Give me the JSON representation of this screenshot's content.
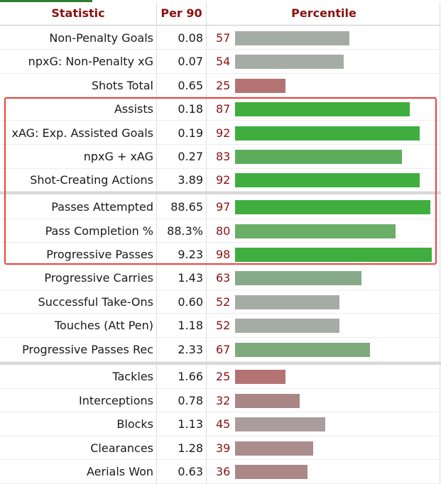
{
  "headers": {
    "statistic": "Statistic",
    "per90": "Per 90",
    "percentile": "Percentile"
  },
  "colors": {
    "header_text": "#8b1111",
    "percentile_text": "#8b1111",
    "bar_high": "#3fae3f",
    "bar_mid": "#6aae68",
    "bar_midlow": "#86aa87",
    "bar_neutral": "#a5aca5",
    "bar_low_mauve": "#aa8c8c",
    "bar_low_red": "#b47373",
    "highlight_box": "#e8433c"
  },
  "chart_data": {
    "type": "bar",
    "orientation": "horizontal",
    "title": "",
    "xlabel": "",
    "ylabel": "",
    "xlim": [
      0,
      100
    ],
    "categories": [
      "Non-Penalty Goals",
      "npxG: Non-Penalty xG",
      "Shots Total",
      "Assists",
      "xAG: Exp. Assisted Goals",
      "npxG + xAG",
      "Shot-Creating Actions",
      "Passes Attempted",
      "Pass Completion %",
      "Progressive Passes",
      "Progressive Carries",
      "Successful Take-Ons",
      "Touches (Att Pen)",
      "Progressive Passes Rec",
      "Tackles",
      "Interceptions",
      "Blocks",
      "Clearances",
      "Aerials Won"
    ],
    "per90": [
      "0.08",
      "0.07",
      "0.65",
      "0.18",
      "0.19",
      "0.27",
      "3.89",
      "88.65",
      "88.3%",
      "9.23",
      "1.43",
      "0.60",
      "1.18",
      "2.33",
      "1.66",
      "0.78",
      "1.13",
      "1.28",
      "0.63"
    ],
    "values": [
      57,
      54,
      25,
      87,
      92,
      83,
      92,
      97,
      80,
      98,
      63,
      52,
      52,
      67,
      25,
      32,
      45,
      39,
      36
    ],
    "bar_colors": [
      "#a5aca5",
      "#a5aca5",
      "#b47373",
      "#3fae3f",
      "#3fae3f",
      "#5cad5a",
      "#3fae3f",
      "#3fae3f",
      "#6aae68",
      "#3fae3f",
      "#86aa87",
      "#a5aca5",
      "#a5aca5",
      "#7eaa7e",
      "#b47373",
      "#aa8787",
      "#ab9d9d",
      "#aa8c8c",
      "#aa8888"
    ]
  }
}
